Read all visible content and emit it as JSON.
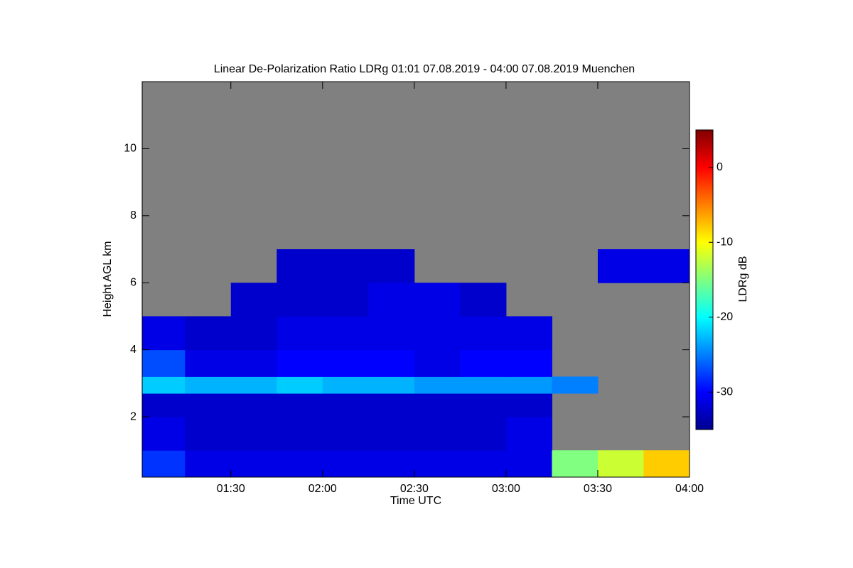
{
  "chart_data": {
    "type": "heatmap",
    "title": "Linear De-Polarization Ratio LDRg   01:01 07.08.2019 - 04:00 07.08.2019 Muenchen",
    "x_label": "Time UTC",
    "y_label": "Height AGL km",
    "colorbar_label": "LDRg dB",
    "xlim": [
      61,
      240
    ],
    "xticks": [
      {
        "value": 90,
        "label": "01:30"
      },
      {
        "value": 120,
        "label": "02:00"
      },
      {
        "value": 150,
        "label": "02:30"
      },
      {
        "value": 180,
        "label": "03:00"
      },
      {
        "value": 210,
        "label": "03:30"
      },
      {
        "value": 240,
        "label": "04:00"
      }
    ],
    "ylim": [
      0.2,
      12
    ],
    "yticks": [
      2,
      4,
      6,
      8,
      10
    ],
    "clim": [
      -35,
      5
    ],
    "cticks": [
      0,
      -10,
      -20,
      -30
    ],
    "background_color": "#808080",
    "colormap": "jet",
    "x_edges": [
      61,
      75,
      90,
      105,
      120,
      135,
      150,
      165,
      180,
      195,
      210,
      225,
      240
    ],
    "y_edges": [
      0.2,
      1,
      2,
      2.7,
      3.2,
      4,
      5,
      6,
      7,
      12
    ],
    "z": [
      [
        -28,
        -31,
        -31,
        -31,
        -31,
        -31,
        -31,
        -31,
        -31,
        -15,
        -12,
        -8
      ],
      [
        -31,
        -32,
        -32,
        -32,
        -32,
        -32,
        -32,
        -32,
        -31,
        null,
        null,
        null
      ],
      [
        -32,
        -32,
        -32,
        -32,
        -32,
        -32,
        -32,
        -32,
        -32,
        null,
        null,
        null
      ],
      [
        -22,
        -23,
        -23,
        -22,
        -23,
        -23,
        -24,
        -24,
        -24,
        -25,
        null,
        null
      ],
      [
        -27,
        -31,
        -31,
        -30,
        -30,
        -30,
        -31,
        -30,
        -30,
        null,
        null,
        null
      ],
      [
        -31,
        -32,
        -32,
        -31,
        -31,
        -31,
        -31,
        -31,
        -31,
        null,
        null,
        null
      ],
      [
        null,
        null,
        -32,
        -32,
        -32,
        -31,
        -31,
        -32,
        null,
        null,
        null,
        null
      ],
      [
        null,
        null,
        null,
        -32,
        -32,
        -32,
        null,
        null,
        null,
        null,
        -31,
        -31
      ],
      [
        null,
        null,
        null,
        null,
        null,
        null,
        null,
        null,
        null,
        null,
        null,
        null
      ]
    ]
  }
}
